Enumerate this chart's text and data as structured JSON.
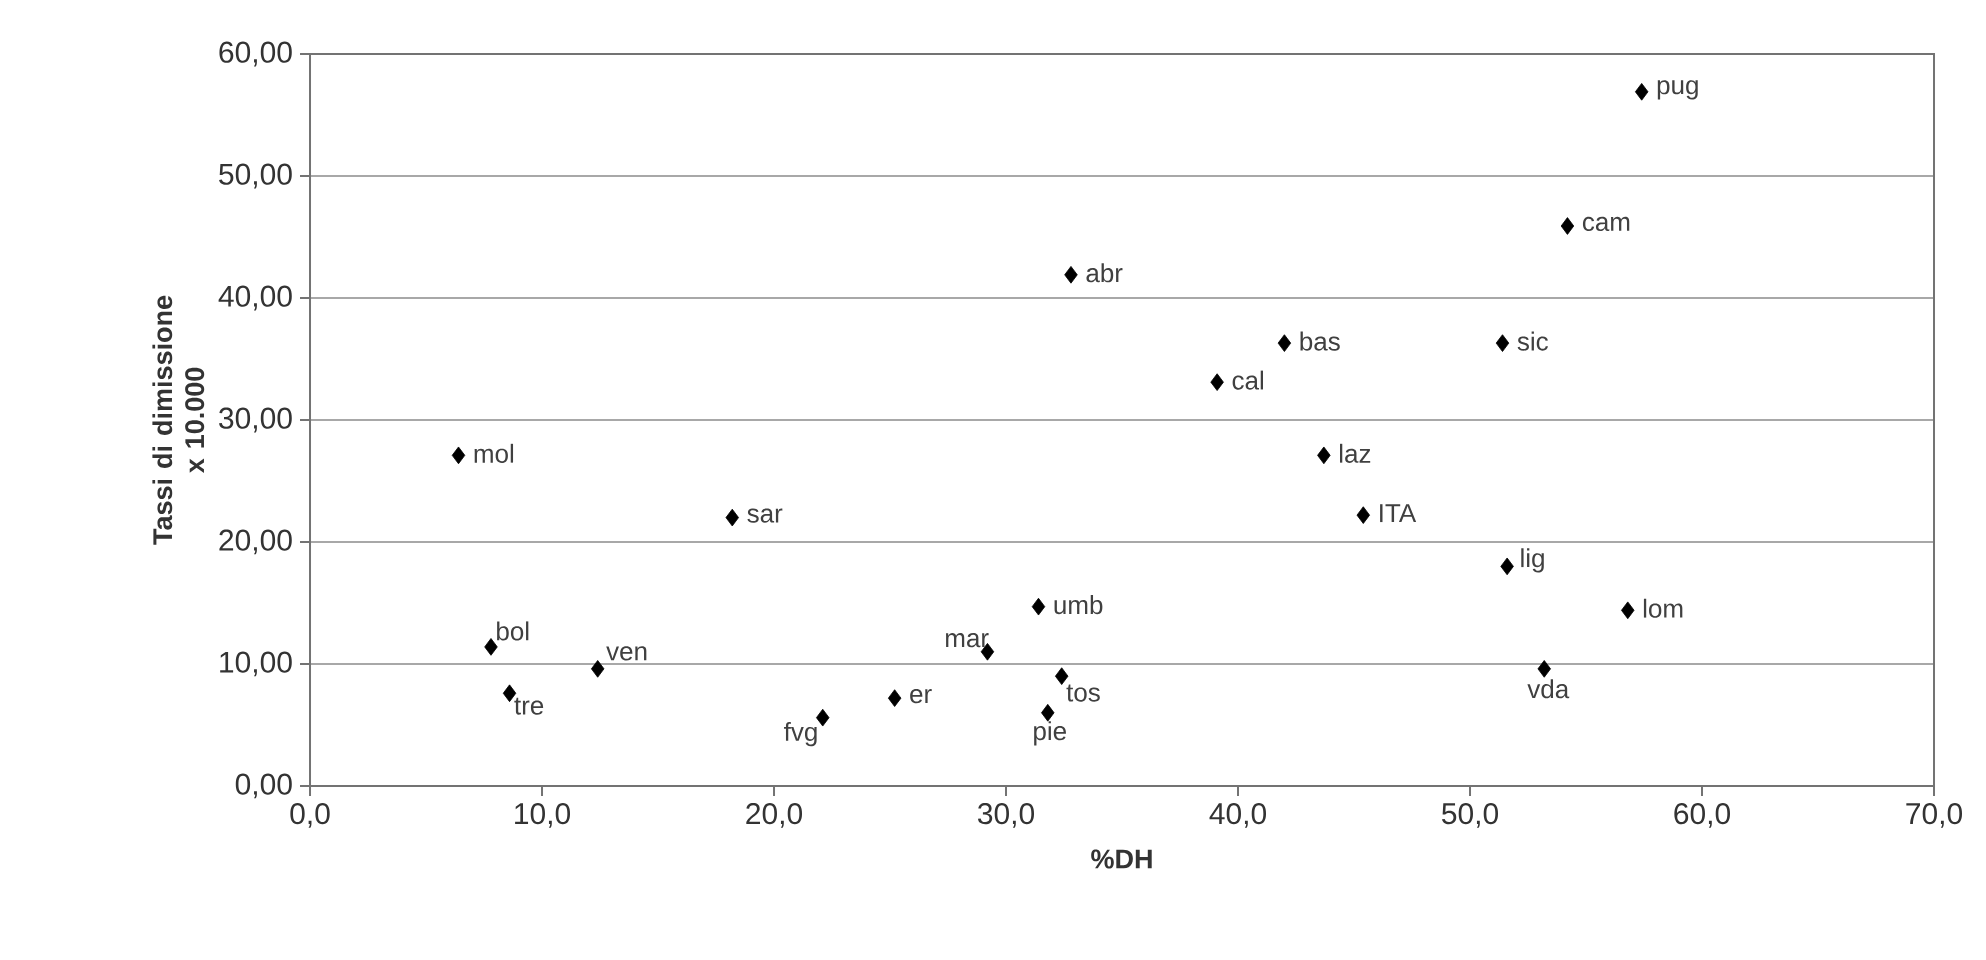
{
  "chart_data": {
    "type": "scatter",
    "xlabel": "%DH",
    "ylabel": "Tassi di dimissione x 10.000",
    "x": [
      57.4,
      54.2,
      32.8,
      42.0,
      51.4,
      39.1,
      6.4,
      43.7,
      18.2,
      45.4,
      51.6,
      56.8,
      31.4,
      7.8,
      29.2,
      12.4,
      53.2,
      32.4,
      8.6,
      25.2,
      22.1,
      31.8
    ],
    "values": [
      56.9,
      45.9,
      41.9,
      36.3,
      36.3,
      33.1,
      27.1,
      27.1,
      22.0,
      22.2,
      18.0,
      14.4,
      14.7,
      11.4,
      11.0,
      9.6,
      9.6,
      9.0,
      7.6,
      7.2,
      5.6,
      6.0
    ],
    "color": "#000000",
    "marker": "diamond",
    "grid": "y",
    "xlim": [
      0,
      70
    ],
    "ylim": [
      0,
      60
    ],
    "xticks": [
      {
        "value": 0,
        "label": "0,0"
      },
      {
        "value": 10,
        "label": "10,0"
      },
      {
        "value": 20,
        "label": "20,0"
      },
      {
        "value": 30,
        "label": "30,0"
      },
      {
        "value": 40,
        "label": "40,0"
      },
      {
        "value": 50,
        "label": "50,0"
      },
      {
        "value": 60,
        "label": "60,0"
      },
      {
        "value": 70,
        "label": "70,0"
      }
    ],
    "yticks": [
      {
        "value": 0,
        "label": "0,00"
      },
      {
        "value": 10,
        "label": "10,00"
      },
      {
        "value": 20,
        "label": "20,00"
      },
      {
        "value": 30,
        "label": "30,00"
      },
      {
        "value": 40,
        "label": "40,00"
      },
      {
        "value": 50,
        "label": "50,00"
      },
      {
        "value": 60,
        "label": "60,00"
      }
    ],
    "annotations": [
      {
        "text": "pug",
        "x": 57.4,
        "y": 56.9
      },
      {
        "text": "cam",
        "x": 54.2,
        "y": 45.9
      },
      {
        "text": "abr",
        "x": 32.8,
        "y": 41.9
      },
      {
        "text": "bas",
        "x": 42.0,
        "y": 36.3
      },
      {
        "text": "sic",
        "x": 51.4,
        "y": 36.3
      },
      {
        "text": "cal",
        "x": 39.1,
        "y": 33.1
      },
      {
        "text": "mol",
        "x": 6.4,
        "y": 27.1
      },
      {
        "text": "laz",
        "x": 43.7,
        "y": 27.1
      },
      {
        "text": "sar",
        "x": 18.2,
        "y": 22.0
      },
      {
        "text": "ITA",
        "x": 45.4,
        "y": 22.2
      },
      {
        "text": "lig",
        "x": 51.6,
        "y": 18.0
      },
      {
        "text": "lom",
        "x": 56.8,
        "y": 14.4
      },
      {
        "text": "umb",
        "x": 31.4,
        "y": 14.7
      },
      {
        "text": "bol",
        "x": 7.8,
        "y": 11.4
      },
      {
        "text": "mar",
        "x": 29.2,
        "y": 11.0
      },
      {
        "text": "ven",
        "x": 12.4,
        "y": 9.6
      },
      {
        "text": "vda",
        "x": 53.2,
        "y": 9.6
      },
      {
        "text": "tos",
        "x": 32.4,
        "y": 9.0
      },
      {
        "text": "tre",
        "x": 8.6,
        "y": 7.6
      },
      {
        "text": "er",
        "x": 25.2,
        "y": 7.2
      },
      {
        "text": "fvg",
        "x": 22.1,
        "y": 5.6
      },
      {
        "text": "pie",
        "x": 31.8,
        "y": 6.0
      }
    ]
  }
}
